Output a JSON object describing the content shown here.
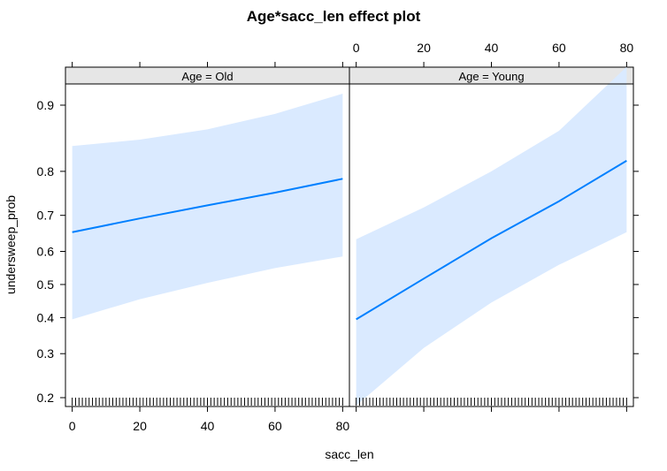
{
  "chart_data": {
    "type": "line",
    "title": "Age*sacc_len effect plot",
    "xlabel": "sacc_len",
    "ylabel": "undersweep_prob",
    "xlim": [
      -2,
      82
    ],
    "x_ticks": [
      0,
      20,
      40,
      60,
      80
    ],
    "y_ticks": [
      0.2,
      0.3,
      0.4,
      0.5,
      0.6,
      0.7,
      0.8,
      0.9
    ],
    "y_scale": "logit",
    "grid": false,
    "rug": true,
    "colors": {
      "line": "#0080ff",
      "band": "#daeaff",
      "frame": "#000000",
      "strip": "#e6e6e6"
    },
    "panels": [
      {
        "strip": "Age = Old",
        "x": [
          0,
          20,
          40,
          60,
          80
        ],
        "fit": [
          0.655,
          0.692,
          0.725,
          0.755,
          0.785
        ],
        "lower": [
          0.395,
          0.455,
          0.505,
          0.55,
          0.585
        ],
        "upper": [
          0.845,
          0.855,
          0.87,
          0.89,
          0.912
        ]
      },
      {
        "strip": "Age = Young",
        "x": [
          0,
          20,
          40,
          60,
          80
        ],
        "fit": [
          0.395,
          0.518,
          0.638,
          0.735,
          0.82
        ],
        "lower": [
          0.185,
          0.315,
          0.445,
          0.56,
          0.655
        ],
        "upper": [
          0.635,
          0.72,
          0.8,
          0.868,
          0.935
        ]
      }
    ],
    "rug_x": [
      0,
      1,
      2,
      3,
      4,
      5,
      6,
      7,
      8,
      9,
      10,
      11,
      12,
      13,
      14,
      15,
      16,
      17,
      18,
      19,
      20,
      21,
      22,
      23,
      24,
      25,
      26,
      27,
      28,
      29,
      30,
      31,
      32,
      33,
      34,
      35,
      36,
      37,
      38,
      39,
      40,
      41,
      42,
      43,
      44,
      45,
      46,
      47,
      48,
      49,
      50,
      51,
      52,
      53,
      54,
      55,
      56,
      57,
      58,
      59,
      60,
      61,
      62,
      63,
      64,
      65,
      66,
      67,
      68,
      69,
      70,
      71,
      72,
      73,
      74,
      75,
      76,
      77,
      78,
      79,
      80
    ]
  }
}
